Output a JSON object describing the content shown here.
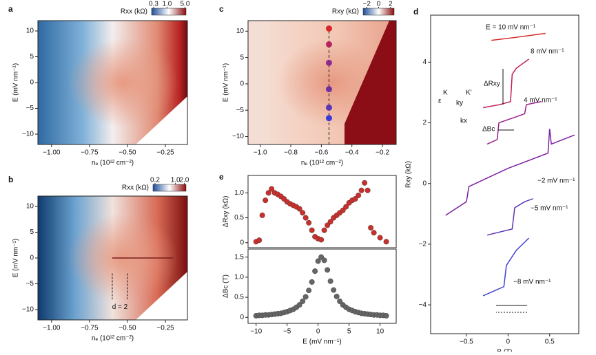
{
  "chart_data": [
    {
      "type": "heatmap",
      "panel": "a",
      "xlabel": "nₑ (10¹² cm⁻²)",
      "ylabel": "E (mV nm⁻¹)",
      "xlim": [
        -1.09,
        -0.105
      ],
      "ylim": [
        -12,
        12
      ],
      "xticks": [
        {
          "value": -1,
          "label": "−1.00"
        },
        {
          "value": -0.75,
          "label": "−0.75"
        },
        {
          "value": -0.5,
          "label": "−0.50"
        },
        {
          "value": -0.25,
          "label": "−0.25"
        }
      ],
      "yticks": [
        {
          "value": -10,
          "label": "−10"
        },
        {
          "value": -5,
          "label": "−5"
        },
        0,
        5,
        10
      ],
      "colorbar": {
        "label": "Rxx (kΩ)",
        "log": true,
        "lim": [
          0.25,
          5.5
        ],
        "ticks": [
          0.3,
          {
            "value": 1,
            "label": "1.0"
          },
          {
            "value": 5,
            "label": "5.0"
          }
        ]
      }
    },
    {
      "type": "heatmap",
      "panel": "b",
      "xlabel": "nₑ (10¹² cm⁻²)",
      "ylabel": "E (mV nm⁻¹)",
      "xlim": [
        -1.09,
        -0.105
      ],
      "ylim": [
        -12,
        12
      ],
      "xticks": [
        {
          "value": -1,
          "label": "−1.00"
        },
        {
          "value": -0.75,
          "label": "−0.75"
        },
        {
          "value": -0.5,
          "label": "−0.50"
        },
        {
          "value": -0.25,
          "label": "−0.25"
        }
      ],
      "yticks": [
        {
          "value": -10,
          "label": "−10"
        },
        {
          "value": -5,
          "label": "−5"
        },
        0,
        5,
        10
      ],
      "annotations": [
        "d = 2"
      ],
      "colorbar": {
        "label": "Rxx (kΩ)",
        "log": true,
        "lim": [
          0.17,
          2.3
        ],
        "ticks": [
          0.2,
          {
            "value": 1,
            "label": "1.0"
          },
          {
            "value": 2,
            "label": "2.0"
          }
        ]
      }
    },
    {
      "type": "heatmap",
      "panel": "c",
      "xlabel": "nₑ (10¹² cm⁻²)",
      "ylabel": "E (mV nm⁻¹)",
      "xlim": [
        -1.08,
        -0.11
      ],
      "ylim": [
        -11.5,
        12
      ],
      "xticks": [
        {
          "value": -1,
          "label": "−1.0"
        },
        {
          "value": -0.8,
          "label": "−0.8"
        },
        {
          "value": -0.6,
          "label": "−0.6"
        },
        {
          "value": -0.4,
          "label": "−0.4"
        },
        {
          "value": -0.2,
          "label": "−0.2"
        }
      ],
      "yticks": [
        {
          "value": -10,
          "label": "−10"
        },
        {
          "value": -5,
          "label": "−5"
        },
        0,
        5,
        10
      ],
      "points": {
        "x": [
          -0.55,
          -0.55,
          -0.55,
          -0.55,
          -0.55,
          -0.55
        ],
        "values": [
          10.5,
          7.5,
          4,
          -1,
          -4.5,
          -6.5
        ],
        "colors": [
          "#d62728",
          "#b5245e",
          "#8e2a8e",
          "#7030a0",
          "#5a35b8",
          "#3a3ad8"
        ]
      },
      "colorbar": {
        "label": "Rxy (kΩ)",
        "log": false,
        "lim": [
          -2.6,
          2.6
        ],
        "ticks": [
          {
            "value": -2,
            "label": "−2"
          },
          0,
          2
        ]
      }
    },
    {
      "type": "scatter",
      "panel": "e",
      "ylabel": "ΔRxy (kΩ)",
      "color": "#c8302c",
      "xlim": [
        -11.3,
        12.6
      ],
      "ylim": [
        -0.1,
        1.35
      ],
      "xticks": [],
      "yticks": [
        0,
        {
          "value": 0.5,
          "label": "0.5"
        },
        {
          "value": 1,
          "label": "1.0"
        }
      ],
      "x": [
        -10,
        -9.5,
        -9,
        -8.5,
        -8,
        -7.5,
        -7,
        -6.5,
        -6,
        -5.5,
        -5,
        -4.5,
        -4,
        -3.5,
        -3,
        -2.5,
        -2,
        -1.5,
        -1,
        -0.5,
        0,
        0.5,
        1,
        1.5,
        2,
        2.5,
        3,
        3.5,
        4,
        4.5,
        5,
        5.5,
        6,
        6.5,
        7,
        7.5,
        8,
        8.5,
        9,
        10,
        11
      ],
      "values": [
        0.02,
        0.05,
        0.55,
        0.85,
        1.0,
        1.08,
        1.0,
        0.97,
        0.93,
        0.88,
        0.82,
        0.78,
        0.75,
        0.72,
        0.68,
        0.6,
        0.5,
        0.4,
        0.25,
        0.12,
        0.08,
        0.06,
        0.25,
        0.35,
        0.42,
        0.5,
        0.55,
        0.6,
        0.65,
        0.72,
        0.8,
        0.85,
        0.88,
        0.95,
        1.05,
        1.2,
        1.05,
        0.3,
        0.2,
        0.1,
        0.02
      ]
    },
    {
      "type": "scatter",
      "xlabel": "E (mV nm⁻¹)",
      "ylabel": "ΔBc (T)",
      "color": "#666666",
      "xlim": [
        -11.3,
        12.6
      ],
      "ylim": [
        -0.15,
        1.7
      ],
      "xticks": [
        {
          "value": -10,
          "label": "−10"
        },
        {
          "value": -5,
          "label": "−5"
        },
        0,
        5,
        10
      ],
      "yticks": [
        0,
        {
          "value": 0.5,
          "label": "0.5"
        },
        {
          "value": 1,
          "label": "1.0"
        },
        {
          "value": 1.5,
          "label": "1.5"
        }
      ],
      "x": [
        -10,
        -9.5,
        -9,
        -8.5,
        -8,
        -7.5,
        -7,
        -6.5,
        -6,
        -5.5,
        -5,
        -4.5,
        -4,
        -3.5,
        -3,
        -2.5,
        -2,
        -1.5,
        -1,
        -0.5,
        0,
        0.5,
        1,
        1.5,
        2,
        2.5,
        3,
        3.5,
        4,
        4.5,
        5,
        5.5,
        6,
        6.5,
        7,
        7.5,
        8,
        8.5,
        9,
        9.5,
        10,
        10.5,
        11
      ],
      "values": [
        0.04,
        0.05,
        0.05,
        0.06,
        0.06,
        0.07,
        0.08,
        0.09,
        0.1,
        0.12,
        0.14,
        0.17,
        0.2,
        0.25,
        0.31,
        0.4,
        0.51,
        0.67,
        0.88,
        1.15,
        1.4,
        1.5,
        1.42,
        1.18,
        0.9,
        0.68,
        0.52,
        0.4,
        0.31,
        0.25,
        0.2,
        0.17,
        0.14,
        0.12,
        0.1,
        0.09,
        0.08,
        0.07,
        0.06,
        0.06,
        0.05,
        0.05,
        0.04
      ]
    },
    {
      "type": "line",
      "panel": "d",
      "xlabel": "B (T)",
      "ylabel": "Rxy (kΩ)",
      "xlim": [
        -0.93,
        0.85
      ],
      "ylim": [
        -4.95,
        5.55
      ],
      "xticks": [
        {
          "value": -0.5,
          "label": "−0.5"
        },
        0,
        {
          "value": 0.5,
          "label": "0.5"
        }
      ],
      "yticks": [
        {
          "value": -4,
          "label": "−4"
        },
        {
          "value": -2,
          "label": "−2"
        },
        0,
        2,
        4
      ],
      "series": [
        {
          "name": "E = 10 mV nm⁻¹",
          "color": "#d62728",
          "x": [
            -0.2,
            0.1,
            0.45
          ],
          "values": [
            4.72,
            4.82,
            4.95
          ]
        },
        {
          "name": "8 mV nm⁻¹",
          "color": "#c2185b",
          "x": [
            -0.3,
            -0.1,
            0.03,
            0.05,
            0.1,
            0.25
          ],
          "values": [
            2.5,
            2.6,
            2.7,
            3.6,
            3.8,
            4.1
          ]
        },
        {
          "name": "4 mV nm⁻¹",
          "color": "#9c1e8a",
          "x": [
            -0.25,
            -0.13,
            -0.11,
            0.1,
            0.2,
            0.22,
            0.4
          ],
          "values": [
            1.3,
            1.45,
            2.0,
            2.2,
            2.3,
            2.6,
            2.7
          ]
        },
        {
          "name": "−2 mV nm⁻¹",
          "color": "#7b1fa2",
          "x": [
            -0.75,
            -0.5,
            -0.47,
            0,
            0.48,
            0.5,
            0.52,
            0.8
          ],
          "values": [
            -1.05,
            -0.6,
            -0.1,
            0.5,
            1.0,
            1.8,
            1.3,
            1.6
          ]
        },
        {
          "name": "−5 mV nm⁻¹",
          "color": "#5e35b1",
          "x": [
            -0.25,
            0.05,
            0.08,
            0.2,
            0.3
          ],
          "values": [
            -1.7,
            -1.5,
            -0.8,
            -0.6,
            -0.5
          ]
        },
        {
          "name": "−8 mV nm⁻¹",
          "color": "#3f3fd0",
          "x": [
            -0.3,
            -0.05,
            -0.02,
            0.1,
            0.25
          ],
          "values": [
            -3.7,
            -3.4,
            -2.7,
            -2.2,
            -1.8
          ]
        }
      ],
      "annotations": [
        "ΔRxy",
        "ΔBc",
        "K",
        "K′",
        "ε",
        "ky",
        "kx"
      ]
    }
  ]
}
